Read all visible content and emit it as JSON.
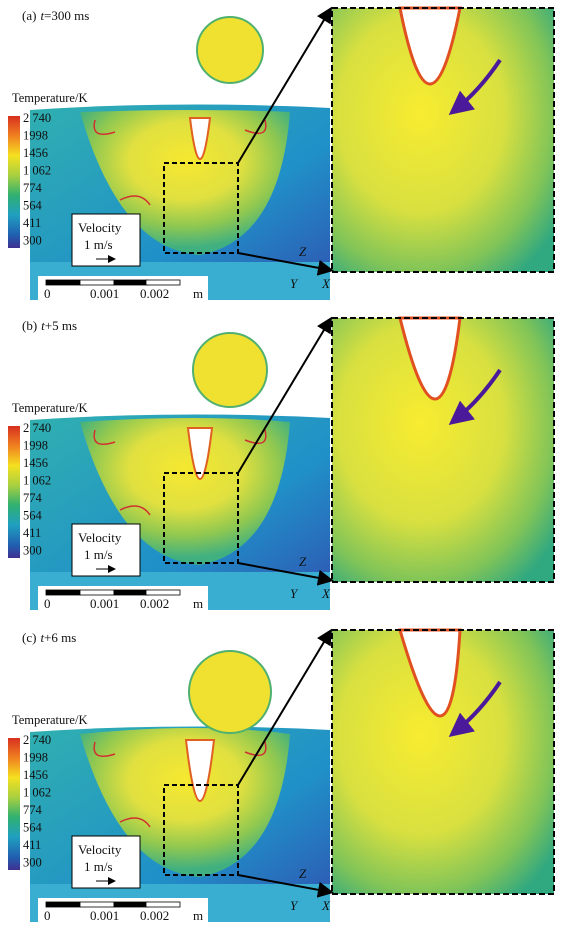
{
  "panels": [
    {
      "tag": "(a)",
      "var": "t",
      "time": "=300 ms"
    },
    {
      "tag": "(b)",
      "var": "t",
      "time": "+5 ms"
    },
    {
      "tag": "(c)",
      "var": "t",
      "time": "+6 ms"
    }
  ],
  "colorbar": {
    "title": "Temperature/K",
    "ticks": [
      "2 740",
      "1998",
      "1456",
      "1 062",
      "774",
      "564",
      "411",
      "300"
    ]
  },
  "velocity": {
    "title": "Velocity",
    "scale": "1 m/s"
  },
  "scalebar": {
    "labels": [
      "0",
      "0.001",
      "0.002"
    ],
    "unit": "m"
  },
  "axes": {
    "z": "Z",
    "y": "Y",
    "x": "X"
  }
}
